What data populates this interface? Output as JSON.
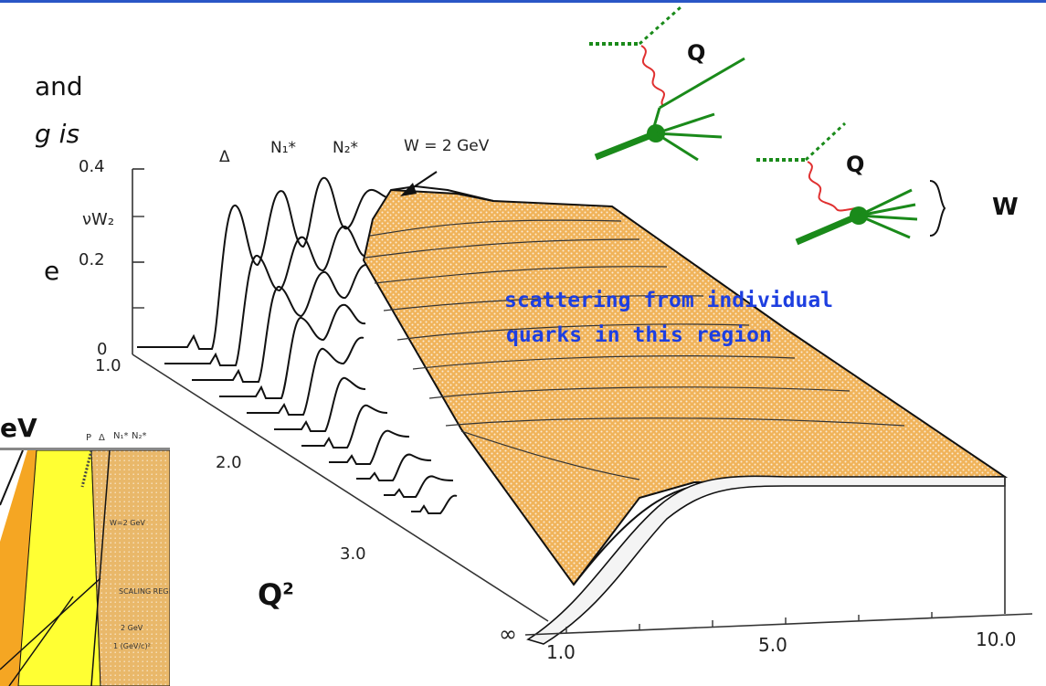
{
  "fragments": {
    "line1": "and",
    "line2": "g is",
    "line3": "e",
    "line4": "eV"
  },
  "axes": {
    "y_label": "νW₂",
    "y_ticks": [
      "0.4",
      "0.2",
      "0"
    ],
    "q2_ticks": [
      "1.0",
      "2.0",
      "3.0"
    ],
    "x_ticks": [
      "1.0",
      "5.0",
      "10.0"
    ],
    "infinity": "∞",
    "q2_label": "Q",
    "q2_sup": "2"
  },
  "resonances": {
    "delta": "Δ",
    "n1": "N₁*",
    "n2": "N₂*",
    "w_marker": "W = 2 GeV"
  },
  "annotation": {
    "line1": "scattering from individual",
    "line2": "quarks in this region"
  },
  "feynman": {
    "q_top": "Q",
    "q_bottom": "Q",
    "w_label": "W"
  },
  "thumbnail": {
    "labels": [
      "P",
      "Δ",
      "N₁*",
      "N₂*"
    ],
    "w_marker": "W=2 GeV",
    "scaling": "SCALING REGION",
    "gev": "2 GeV",
    "q2": "1 (GeV/c)²"
  },
  "colors": {
    "accent_bar": "#2a56c6",
    "fill_orange": "#f0b35a",
    "annotation_blue": "#1e3fe0",
    "feynman_green": "#1a8a1a",
    "photon_red": "#e03030",
    "thumb_yellow": "#ffff33",
    "thumb_orange": "#f5a623"
  }
}
